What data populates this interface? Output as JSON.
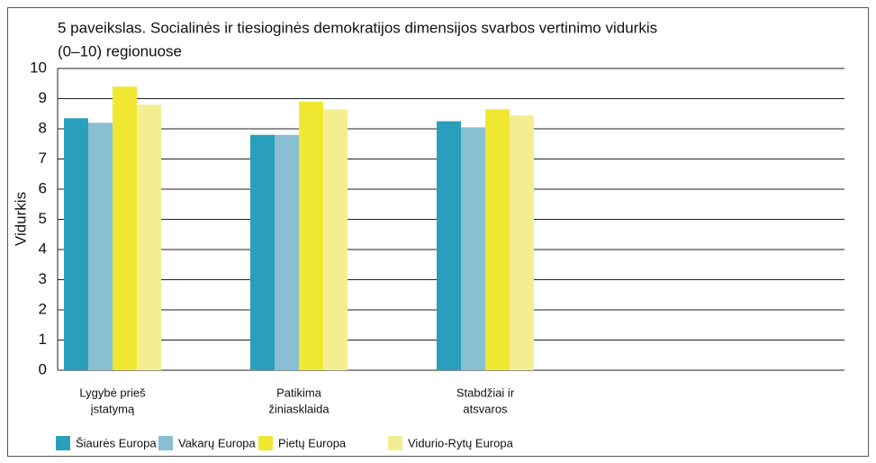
{
  "chart_data": {
    "type": "bar",
    "title": [
      "5 paveikslas. Socialinės ir tiesioginės demokratijos dimensijos svarbos vertinimo vidurkis",
      "(0–10) regionuose"
    ],
    "y_label": "Vidurkis",
    "categories": [
      [
        "Lygybė prieš",
        "įstatymą"
      ],
      [
        "Patikima",
        "žiniasklaida"
      ],
      [
        "Stabdžiai ir",
        "atsvaros"
      ]
    ],
    "series": [
      {
        "name": "Šiaurės Europa",
        "color": "#2a9fbc",
        "values": [
          8.35,
          7.8,
          8.25
        ]
      },
      {
        "name": "Vakarų Europa",
        "color": "#89bfd3",
        "values": [
          8.2,
          7.8,
          8.05
        ]
      },
      {
        "name": "Pietų Europa",
        "color": "#f0e830",
        "values": [
          9.4,
          8.9,
          8.65
        ]
      },
      {
        "name": "Vidurio-Rytų Europa",
        "color": "#f3ef90",
        "values": [
          8.8,
          8.65,
          8.45
        ]
      }
    ],
    "ylim": [
      0,
      10
    ],
    "yticks": [
      0,
      1,
      2,
      3,
      4,
      5,
      6,
      7,
      8,
      9,
      10
    ],
    "grid": true,
    "legend": "bottom"
  }
}
